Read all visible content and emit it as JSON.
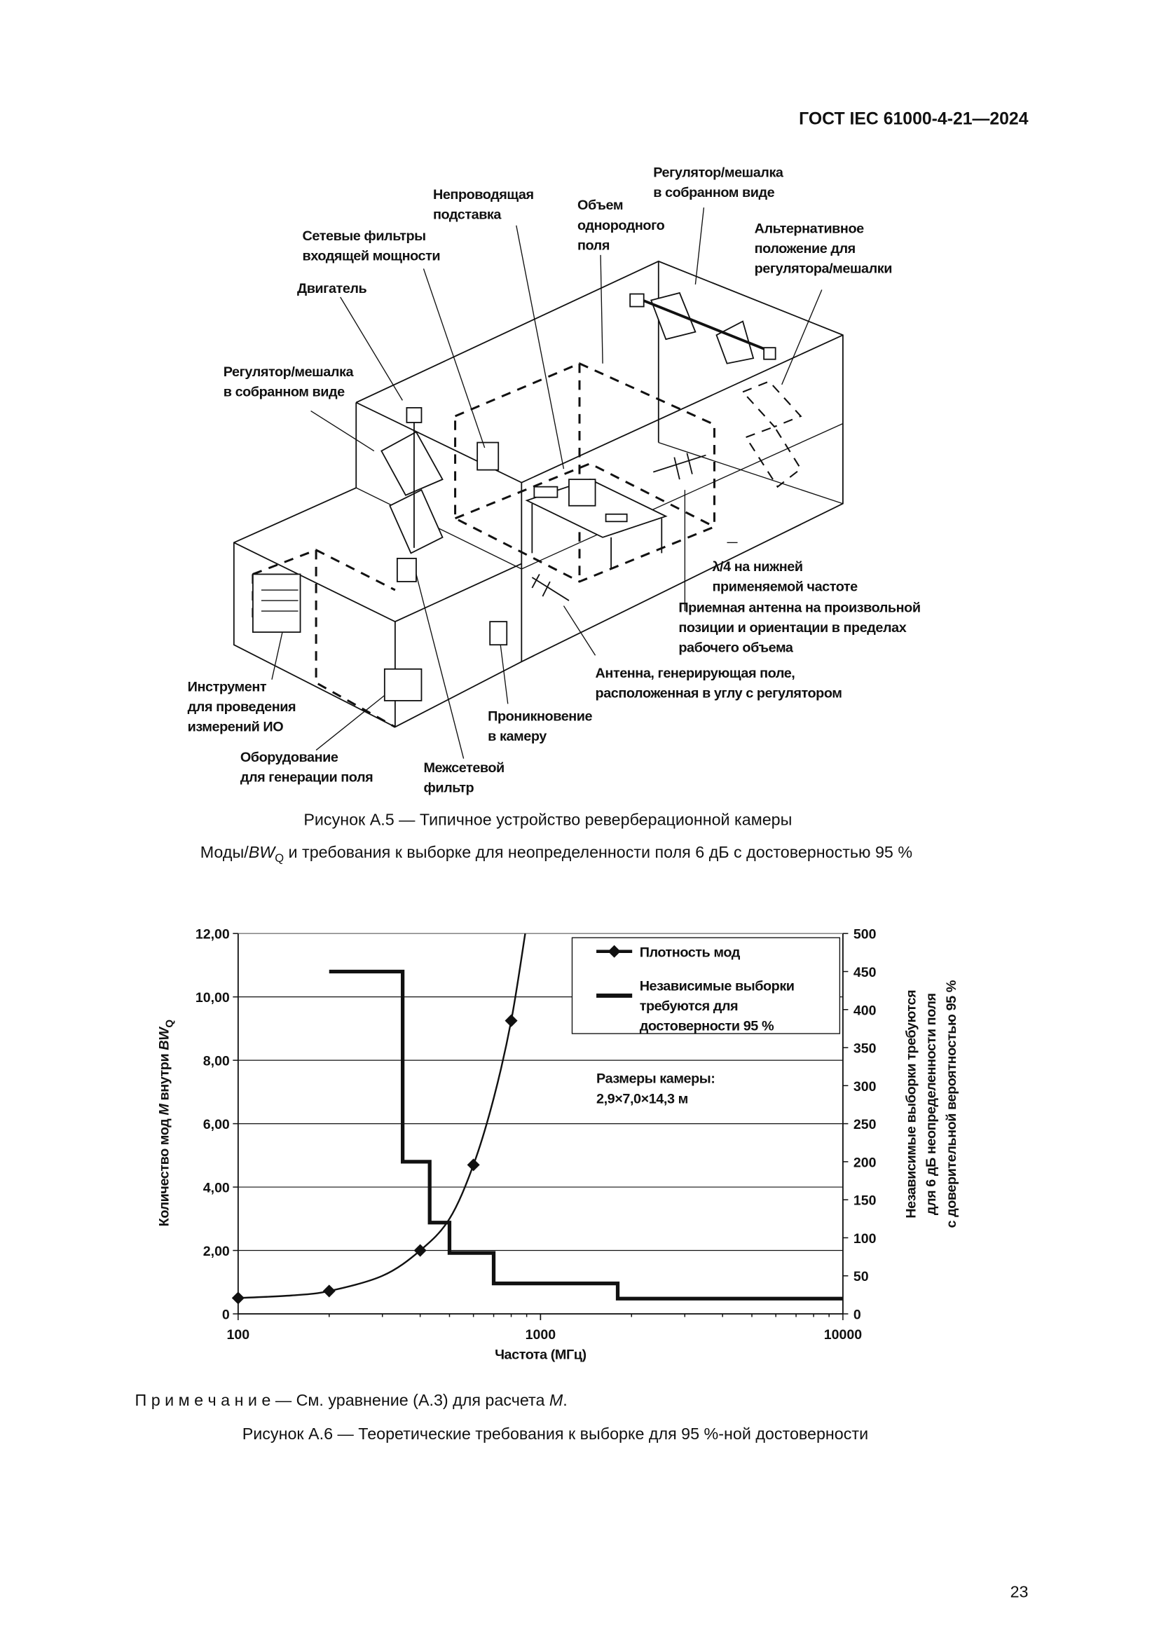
{
  "header": {
    "doc_id": "ГОСТ IEC 61000-4-21—2024"
  },
  "figure_a5": {
    "labels": {
      "stirrer_top": [
        "Регулятор/мешалка",
        "в собранном виде"
      ],
      "stand": [
        "Непроводящая",
        "подставка"
      ],
      "volume": [
        "Объем",
        "однородного",
        "поля"
      ],
      "filters": [
        "Сетевые фильтры",
        "входящей мощности"
      ],
      "alt_position": [
        "Альтернативное",
        "положение для",
        "регулятора/мешалки"
      ],
      "motor": [
        "Двигатель"
      ],
      "stirrer_left": [
        "Регулятор/мешалка",
        "в собранном виде"
      ],
      "lambda": [
        "λ/4 на нижней",
        "применяемой частоте"
      ],
      "rx_antenna": [
        "Приемная антенна на произвольной",
        "позиции и ориентации в пределах",
        "рабочего объема"
      ],
      "tx_antenna": [
        "Антенна, генерирующая поле,",
        "расположенная в углу с регулятором"
      ],
      "instrument": [
        "Инструмент",
        "для проведения",
        "измерений ИО"
      ],
      "penetration": [
        "Проникновение",
        "в камеру"
      ],
      "generator": [
        "Оборудование",
        "для генерации поля"
      ],
      "bulkhead_filter": [
        "Межсетевой",
        "фильтр"
      ]
    },
    "caption": "Рисунок А.5 — Типичное устройство реверберационной камеры"
  },
  "chart_heading": {
    "prefix": "Моды/",
    "bw": "BW",
    "sub": "Q",
    "rest": " и требования к выборке для неопределенности поля 6 дБ с достоверностью 95 %"
  },
  "chart_data": {
    "type": "line",
    "x_scale": "log",
    "xlim": [
      100,
      10000
    ],
    "xlabel": "Частота (МГц)",
    "x_ticks": [
      "100",
      "1000",
      "10000"
    ],
    "y_left": {
      "label_parts": [
        "Количество мод ",
        "M",
        " внутри  ",
        "BW",
        "Q"
      ],
      "lim": [
        0,
        12
      ],
      "ticks": [
        "0",
        "2,00",
        "4,00",
        "6,00",
        "8,00",
        "10,00",
        "12,00"
      ]
    },
    "y_right": {
      "label": [
        "Независимые выборки требуются",
        "для 6 дБ неопределенности поля",
        "с доверительной вероятностью 95 %"
      ],
      "lim": [
        0,
        500
      ],
      "ticks": [
        "0",
        "50",
        "100",
        "150",
        "200",
        "250",
        "300",
        "350",
        "400",
        "450",
        "500"
      ]
    },
    "grid": "horizontal",
    "legend_placement": "top-right",
    "series": [
      {
        "name": "Плотность мод",
        "axis": "left",
        "markers": [
          [
            100,
            0.5
          ],
          [
            200,
            0.72
          ],
          [
            400,
            2.0
          ],
          [
            600,
            4.7
          ],
          [
            800,
            9.25
          ]
        ],
        "curve": [
          [
            100,
            0.5
          ],
          [
            150,
            0.58
          ],
          [
            200,
            0.72
          ],
          [
            300,
            1.2
          ],
          [
            400,
            2.0
          ],
          [
            500,
            3.0
          ],
          [
            600,
            4.7
          ],
          [
            700,
            6.8
          ],
          [
            800,
            9.25
          ],
          [
            890,
            12.0
          ]
        ]
      },
      {
        "name_lines": [
          "Независимые выборки",
          "требуются для",
          "достоверности 95 %"
        ],
        "axis": "right",
        "steps": [
          [
            200,
            350,
            450
          ],
          [
            350,
            430,
            200
          ],
          [
            430,
            500,
            120
          ],
          [
            500,
            700,
            80
          ],
          [
            700,
            1800,
            40
          ],
          [
            1800,
            10000,
            20
          ]
        ]
      }
    ],
    "annotation": [
      "Размеры камеры:",
      "2,9×7,0×14,3 м"
    ]
  },
  "note": {
    "label": "П р и м е ч а н и е",
    "text": " — См. уравнение (А.3) для расчета ",
    "var": "M",
    "end": "."
  },
  "figure_a6": {
    "caption": "Рисунок А.6 — Теоретические требования к выборке для 95 %-ной достоверности"
  },
  "page_number": "23"
}
